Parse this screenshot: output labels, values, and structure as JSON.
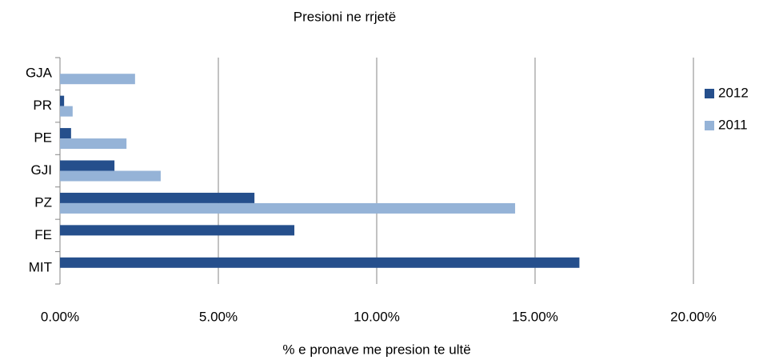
{
  "chart_data": {
    "type": "hbar",
    "title": "Presioni ne rrjetë",
    "x_label": "% e pronave me presion te ultë",
    "categories": [
      "GJA",
      "PR",
      "PE",
      "GJI",
      "PZ",
      "FE",
      "MIT"
    ],
    "series": [
      {
        "name": "2012",
        "color": "#254f8c",
        "values": [
          null,
          0.13,
          0.35,
          1.72,
          6.14,
          7.4,
          16.4
        ]
      },
      {
        "name": "2011",
        "color": "#95b3d7",
        "values": [
          2.37,
          0.4,
          2.1,
          3.18,
          14.37,
          null,
          null
        ]
      }
    ],
    "xlim": [
      0,
      20
    ],
    "xticks": [
      {
        "value": 0,
        "label": "0.00%"
      },
      {
        "value": 5,
        "label": "5.00%"
      },
      {
        "value": 10,
        "label": "10.00%"
      },
      {
        "value": 15,
        "label": "15.00%"
      },
      {
        "value": 20,
        "label": "20.00%"
      }
    ],
    "grid": true,
    "legend": "right"
  }
}
